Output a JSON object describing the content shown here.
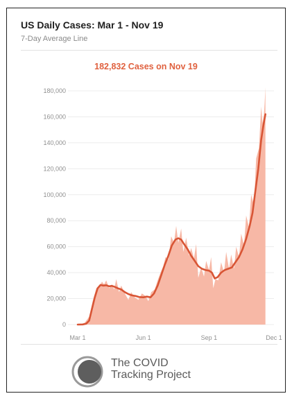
{
  "header": {
    "title": "US Daily Cases: Mar 1 - Nov 19",
    "subtitle": "7-Day Average Line",
    "highlight": "182,832 Cases on Nov 19"
  },
  "colors": {
    "line": "#d85535",
    "area": "#f7b8a6",
    "accent": "#e0613f",
    "grid": "#ececec"
  },
  "chart_data": {
    "type": "area",
    "title": "US Daily Cases: Mar 1 - Nov 19",
    "subtitle": "7-Day Average Line",
    "xlabel": "",
    "ylabel": "",
    "x_range": [
      "2020-03-01",
      "2020-11-19"
    ],
    "x_axis_end_label_date": "2020-12-01",
    "ylim": [
      0,
      180000
    ],
    "grid": true,
    "y_ticks": [
      "0",
      "20,000",
      "40,000",
      "60,000",
      "80,000",
      "100,000",
      "120,000",
      "140,000",
      "160,000",
      "180,000"
    ],
    "x_ticks": [
      {
        "date": "2020-03-01",
        "label": "Mar 1"
      },
      {
        "date": "2020-06-01",
        "label": "Jun 1"
      },
      {
        "date": "2020-09-01",
        "label": "Sep 1"
      },
      {
        "date": "2020-12-01",
        "label": "Dec 1"
      }
    ],
    "series": [
      {
        "name": "",
        "kind": "daily-cases-area",
        "points": [
          [
            "2020-03-01",
            0
          ],
          [
            "2020-03-10",
            800
          ],
          [
            "2020-03-17",
            6000
          ],
          [
            "2020-03-22",
            18000
          ],
          [
            "2020-03-27",
            28000
          ],
          [
            "2020-04-01",
            30000
          ],
          [
            "2020-04-04",
            33000
          ],
          [
            "2020-04-07",
            31000
          ],
          [
            "2020-04-10",
            34000
          ],
          [
            "2020-04-14",
            28000
          ],
          [
            "2020-04-18",
            31000
          ],
          [
            "2020-04-21",
            27000
          ],
          [
            "2020-04-24",
            35000
          ],
          [
            "2020-04-28",
            25000
          ],
          [
            "2020-05-01",
            30000
          ],
          [
            "2020-05-06",
            24000
          ],
          [
            "2020-05-11",
            19000
          ],
          [
            "2020-05-15",
            25000
          ],
          [
            "2020-05-20",
            21000
          ],
          [
            "2020-05-25",
            19000
          ],
          [
            "2020-05-30",
            24000
          ],
          [
            "2020-06-04",
            22000
          ],
          [
            "2020-06-08",
            18000
          ],
          [
            "2020-06-12",
            25000
          ],
          [
            "2020-06-17",
            27000
          ],
          [
            "2020-06-21",
            34000
          ],
          [
            "2020-06-25",
            40000
          ],
          [
            "2020-06-29",
            45000
          ],
          [
            "2020-07-02",
            52000
          ],
          [
            "2020-07-06",
            50000
          ],
          [
            "2020-07-10",
            68000
          ],
          [
            "2020-07-14",
            63000
          ],
          [
            "2020-07-17",
            76000
          ],
          [
            "2020-07-20",
            63000
          ],
          [
            "2020-07-24",
            74000
          ],
          [
            "2020-07-27",
            56000
          ],
          [
            "2020-07-31",
            67000
          ],
          [
            "2020-08-04",
            53000
          ],
          [
            "2020-08-07",
            59000
          ],
          [
            "2020-08-11",
            51000
          ],
          [
            "2020-08-14",
            62000
          ],
          [
            "2020-08-17",
            36000
          ],
          [
            "2020-08-21",
            44000
          ],
          [
            "2020-08-25",
            37000
          ],
          [
            "2020-08-28",
            49000
          ],
          [
            "2020-09-01",
            42000
          ],
          [
            "2020-09-04",
            52000
          ],
          [
            "2020-09-07",
            28000
          ],
          [
            "2020-09-10",
            35000
          ],
          [
            "2020-09-14",
            34000
          ],
          [
            "2020-09-18",
            48000
          ],
          [
            "2020-09-22",
            40000
          ],
          [
            "2020-09-25",
            56000
          ],
          [
            "2020-09-29",
            43000
          ],
          [
            "2020-10-02",
            54000
          ],
          [
            "2020-10-06",
            43000
          ],
          [
            "2020-10-09",
            60000
          ],
          [
            "2020-10-13",
            52000
          ],
          [
            "2020-10-16",
            70000
          ],
          [
            "2020-10-20",
            61000
          ],
          [
            "2020-10-23",
            84000
          ],
          [
            "2020-10-27",
            75000
          ],
          [
            "2020-10-30",
            100000
          ],
          [
            "2020-11-03",
            92000
          ],
          [
            "2020-11-06",
            128000
          ],
          [
            "2020-11-10",
            136000
          ],
          [
            "2020-11-13",
            168000
          ],
          [
            "2020-11-15",
            155000
          ],
          [
            "2020-11-17",
            162000
          ],
          [
            "2020-11-18",
            171000
          ],
          [
            "2020-11-19",
            182832
          ]
        ]
      },
      {
        "name": "",
        "kind": "seven-day-average",
        "points": [
          [
            "2020-03-01",
            0
          ],
          [
            "2020-03-08",
            100
          ],
          [
            "2020-03-13",
            700
          ],
          [
            "2020-03-17",
            3000
          ],
          [
            "2020-03-21",
            12000
          ],
          [
            "2020-03-25",
            21000
          ],
          [
            "2020-03-29",
            28000
          ],
          [
            "2020-04-02",
            30500
          ],
          [
            "2020-04-06",
            30000
          ],
          [
            "2020-04-10",
            30300
          ],
          [
            "2020-04-14",
            29500
          ],
          [
            "2020-04-18",
            29800
          ],
          [
            "2020-04-22",
            29000
          ],
          [
            "2020-04-26",
            28000
          ],
          [
            "2020-05-01",
            27000
          ],
          [
            "2020-05-06",
            25000
          ],
          [
            "2020-05-11",
            23500
          ],
          [
            "2020-05-16",
            22500
          ],
          [
            "2020-05-21",
            22000
          ],
          [
            "2020-05-26",
            21200
          ],
          [
            "2020-06-01",
            21000
          ],
          [
            "2020-06-06",
            21500
          ],
          [
            "2020-06-11",
            21000
          ],
          [
            "2020-06-16",
            24000
          ],
          [
            "2020-06-21",
            30000
          ],
          [
            "2020-06-26",
            38000
          ],
          [
            "2020-07-01",
            46000
          ],
          [
            "2020-07-06",
            53000
          ],
          [
            "2020-07-11",
            61000
          ],
          [
            "2020-07-16",
            65500
          ],
          [
            "2020-07-20",
            66500
          ],
          [
            "2020-07-24",
            65500
          ],
          [
            "2020-07-28",
            62000
          ],
          [
            "2020-08-02",
            58000
          ],
          [
            "2020-08-07",
            53000
          ],
          [
            "2020-08-12",
            49000
          ],
          [
            "2020-08-17",
            45000
          ],
          [
            "2020-08-22",
            43000
          ],
          [
            "2020-08-27",
            42000
          ],
          [
            "2020-09-01",
            41500
          ],
          [
            "2020-09-05",
            40000
          ],
          [
            "2020-09-09",
            35500
          ],
          [
            "2020-09-13",
            36500
          ],
          [
            "2020-09-18",
            40000
          ],
          [
            "2020-09-23",
            42000
          ],
          [
            "2020-09-28",
            43000
          ],
          [
            "2020-10-03",
            44000
          ],
          [
            "2020-10-08",
            48000
          ],
          [
            "2020-10-13",
            52000
          ],
          [
            "2020-10-18",
            58000
          ],
          [
            "2020-10-23",
            66000
          ],
          [
            "2020-10-28",
            76000
          ],
          [
            "2020-11-01",
            86000
          ],
          [
            "2020-11-05",
            103000
          ],
          [
            "2020-11-09",
            120000
          ],
          [
            "2020-11-13",
            142000
          ],
          [
            "2020-11-16",
            153000
          ],
          [
            "2020-11-19",
            162000
          ]
        ]
      }
    ]
  },
  "footer": {
    "logo_line1": "The COVID",
    "logo_line2": "Tracking Project"
  }
}
